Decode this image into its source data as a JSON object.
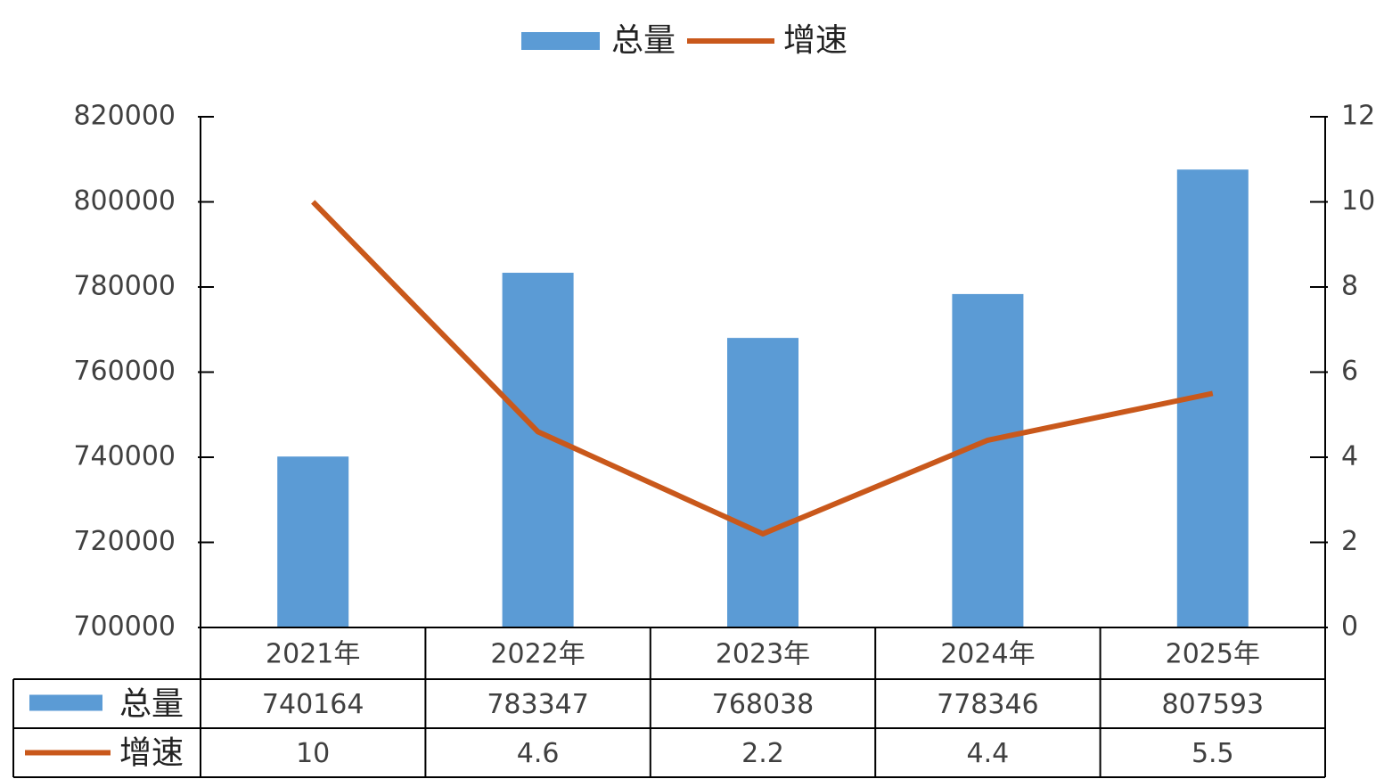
{
  "chart_data": {
    "type": "bar-line",
    "legend": "top",
    "grid": false,
    "categories": [
      "2021年",
      "2022年",
      "2023年",
      "2024年",
      "2025年"
    ],
    "series": [
      {
        "name": "总量",
        "color": "#5b9bd5",
        "type": "bar",
        "values": [
          740164,
          783347,
          768038,
          778346,
          807593
        ]
      },
      {
        "name": "增速",
        "color": "#c9581b",
        "type": "line",
        "axis": "y2",
        "values": [
          10,
          4.6,
          2.2,
          4.4,
          5.5
        ]
      }
    ],
    "ylim": [
      700000,
      820000
    ],
    "yticks": [
      700000,
      720000,
      740000,
      760000,
      780000,
      800000,
      820000
    ],
    "y2lim": [
      0,
      12
    ],
    "y2ticks": [
      0,
      2,
      4,
      6,
      8,
      10,
      12
    ],
    "data_table": true
  }
}
